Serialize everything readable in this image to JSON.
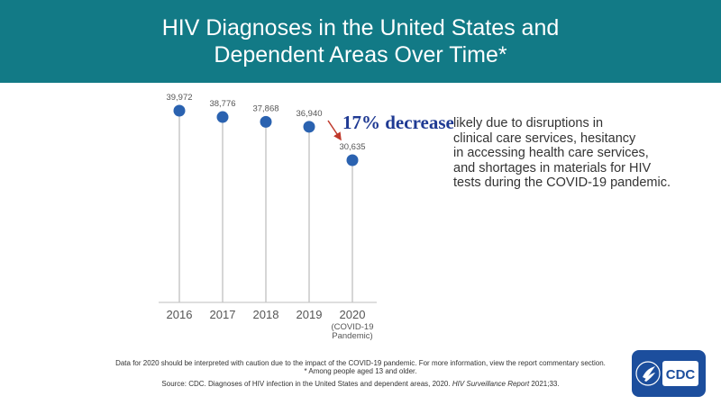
{
  "header": {
    "title_line1": "HIV Diagnoses in the United States and",
    "title_line2": "Dependent Areas Over Time*"
  },
  "chart_data": {
    "type": "scatter",
    "categories": [
      "2016",
      "2017",
      "2018",
      "2019",
      "2020"
    ],
    "category_sublabels": [
      "",
      "",
      "",
      "",
      "(COVID-19\nPandemic)"
    ],
    "values": [
      39972,
      38776,
      37868,
      36940,
      30635
    ],
    "data_labels": [
      "39,972",
      "38,776",
      "37,868",
      "36,940",
      "30,635"
    ],
    "ylim": [
      28000,
      41000
    ],
    "grid": false,
    "point_color": "#2a62b0",
    "stem_color": "#c8c8c8"
  },
  "annotation": {
    "headline": "17% decrease",
    "lines": [
      "likely due to disruptions in",
      "clinical care services, hesitancy",
      "in accessing health care services,",
      "and shortages in materials for HIV",
      "tests during the COVID-19 pandemic."
    ],
    "arrow_color": "#c0392b"
  },
  "footer": {
    "note": "Data for 2020 should be interpreted with caution due to the impact of the COVID-19 pandemic. For more information, view the report commentary section.",
    "asterisk": "* Among people aged 13 and older.",
    "source": "Source: CDC. Diagnoses of HIV infection in the United States and dependent areas, 2020. HIV Surveillance Report 2021;33."
  },
  "logo": {
    "text": "CDC",
    "color": "#1c4e9d"
  }
}
